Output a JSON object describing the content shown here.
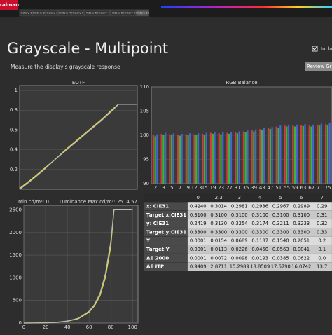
{
  "app": {
    "logo": "calman",
    "tabs": [
      "History 1",
      "History 2",
      "History 3",
      "History 4",
      "History 5",
      "History 6",
      "History 7",
      "History 8",
      "History 9",
      "History 10"
    ]
  },
  "header": {
    "title": "Grayscale - Multipoint",
    "subtitle": "Measure the display's grayscale response",
    "checkbox_label": "Inclu",
    "button": "Review Gra"
  },
  "eotf": {
    "title": "EOTF",
    "xlim": [
      0,
      100
    ],
    "ylim": [
      0,
      1.05
    ],
    "yticks": [
      0.2,
      0.4,
      0.6,
      0.8,
      1
    ],
    "x": [
      0,
      2.3,
      10,
      20,
      30,
      40,
      50,
      60,
      70,
      80,
      84,
      90,
      100
    ],
    "series": [
      {
        "color": "#e6dc3c",
        "values": [
          0.01,
          0.03,
          0.1,
          0.2,
          0.3,
          0.41,
          0.51,
          0.61,
          0.71,
          0.82,
          0.86,
          0.86,
          0.86
        ]
      },
      {
        "color": "#b8b8b8",
        "values": [
          0.0,
          0.02,
          0.09,
          0.19,
          0.3,
          0.4,
          0.5,
          0.6,
          0.7,
          0.81,
          0.86,
          0.86,
          0.86
        ]
      }
    ]
  },
  "luminance_info": {
    "min": "Min cd/m²: 0",
    "label": "Luminance",
    "max": "Max cd/m²: 2514.57"
  },
  "luminance": {
    "xlim": [
      0,
      105
    ],
    "ylim": [
      0,
      2600
    ],
    "xticks": [
      0,
      20,
      40,
      60,
      80,
      100
    ],
    "yticks": [
      0,
      500,
      1000,
      1500,
      2000,
      2500
    ],
    "x": [
      0,
      10,
      20,
      30,
      40,
      50,
      60,
      65,
      70,
      75,
      80,
      83,
      90,
      100
    ],
    "series": [
      {
        "color": "#e6dc3c",
        "values": [
          0,
          1,
          5,
          15,
          40,
          95,
          240,
          380,
          600,
          1000,
          1700,
          2514,
          2514,
          2514
        ]
      },
      {
        "color": "#b8b8b8",
        "values": [
          0,
          1,
          6,
          17,
          45,
          105,
          260,
          410,
          650,
          1080,
          1800,
          2514,
          2514,
          2514
        ]
      }
    ]
  },
  "rgb_balance": {
    "title": "RGB Balance",
    "ylim": [
      90,
      110
    ],
    "yticks": [
      90,
      95,
      100,
      105,
      110
    ],
    "categories": [
      "2",
      "3",
      "5",
      "7",
      "9",
      "12.3",
      "15",
      "19",
      "23",
      "27",
      "31",
      "35",
      "39",
      "43",
      "47",
      "51",
      "55",
      "59",
      "63",
      "67",
      "71",
      "75"
    ],
    "series": [
      {
        "color": "#d23c3c",
        "values": [
          100,
          100.3,
          100.2,
          100.1,
          100.2,
          100.2,
          100.3,
          100.5,
          100.4,
          100.5,
          100.6,
          100.8,
          101,
          101.3,
          101.5,
          101.8,
          102,
          102,
          102.1,
          102,
          102.2,
          102.3
        ]
      },
      {
        "color": "#3cb43c",
        "values": [
          99.8,
          100.1,
          100,
          99.9,
          100,
          100,
          100.1,
          100.3,
          100.2,
          100.3,
          100.4,
          100.6,
          100.8,
          101.1,
          101.3,
          101.6,
          101.8,
          101.8,
          101.9,
          101.8,
          102,
          102.1
        ]
      },
      {
        "color": "#4664d2",
        "values": [
          100.2,
          100.5,
          100.4,
          100.3,
          100.4,
          100.4,
          100.5,
          100.7,
          100.6,
          100.7,
          100.8,
          101,
          101.2,
          101.5,
          101.7,
          102,
          102.2,
          102.2,
          102.3,
          102.2,
          102.4,
          102.5
        ]
      }
    ]
  },
  "table": {
    "columns": [
      "0",
      "2.3",
      "3",
      "4",
      "5",
      "6",
      "7"
    ],
    "rows": [
      [
        "x: CIE31",
        "0.4240",
        "0.3014",
        "0.2981",
        "0.2936",
        "0.2967",
        "0.2989",
        "0.29"
      ],
      [
        "Target x:CIE31",
        "0.3100",
        "0.3100",
        "0.3100",
        "0.3100",
        "0.3100",
        "0.3100",
        "0.31"
      ],
      [
        "y: CIE31",
        "0.2419",
        "0.3130",
        "0.3254",
        "0.3174",
        "0.3211",
        "0.3233",
        "0.32"
      ],
      [
        "Target y:CIE31",
        "0.3300",
        "0.3300",
        "0.3300",
        "0.3300",
        "0.3300",
        "0.3300",
        "0.33"
      ],
      [
        "Y",
        "0.0001",
        "0.0154",
        "0.0689",
        "0.1187",
        "0.1540",
        "0.2051",
        "0.2"
      ],
      [
        "Target Y",
        "0.0001",
        "0.0113",
        "0.0226",
        "0.0450",
        "0.0563",
        "0.0841",
        "0.1"
      ],
      [
        "ΔE 2000",
        "0.0001",
        "0.0072",
        "0.0098",
        "0.0193",
        "0.0385",
        "0.0622",
        "0.0"
      ],
      [
        "ΔE ITP",
        "0.9409",
        "2.8711",
        "15.2989",
        "18.8509",
        "17.6790",
        "16.0742",
        "13.7"
      ]
    ]
  }
}
